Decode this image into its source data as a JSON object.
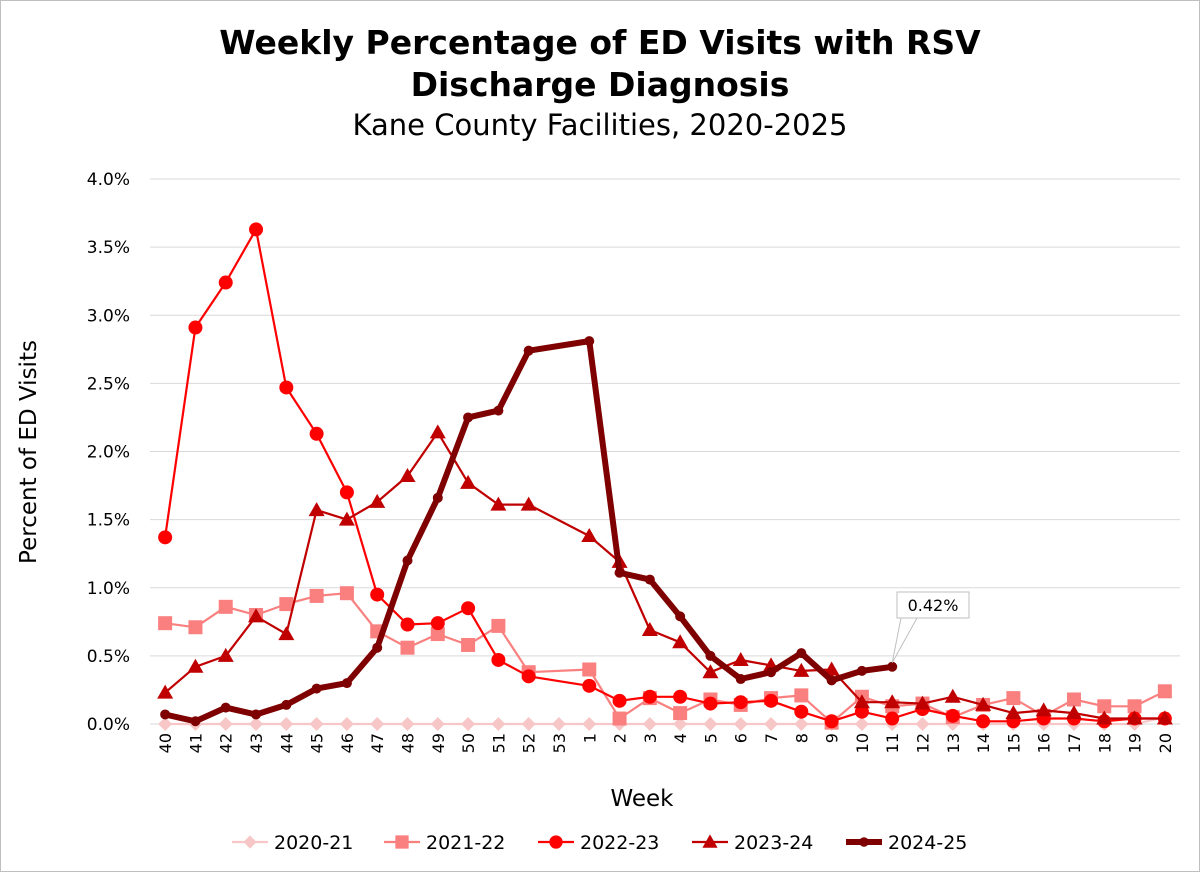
{
  "chart_data": {
    "type": "line",
    "title_line1": "Weekly Percentage of ED Visits with RSV",
    "title_line2": "Discharge Diagnosis",
    "subtitle": "Kane County Facilities, 2020-2025",
    "xlabel": "Week",
    "ylabel": "Percent of ED Visits",
    "ylim": [
      0,
      4.0
    ],
    "yticks": [
      "0.0%",
      "0.5%",
      "1.0%",
      "1.5%",
      "2.0%",
      "2.5%",
      "3.0%",
      "3.5%",
      "4.0%"
    ],
    "grid": true,
    "legend_position": "bottom",
    "categories": [
      "40",
      "41",
      "42",
      "43",
      "44",
      "45",
      "46",
      "47",
      "48",
      "49",
      "50",
      "51",
      "52",
      "53",
      "1",
      "2",
      "3",
      "4",
      "5",
      "6",
      "7",
      "8",
      "9",
      "10",
      "11",
      "12",
      "13",
      "14",
      "15",
      "16",
      "17",
      "18",
      "19",
      "20"
    ],
    "series": [
      {
        "name": "2020-21",
        "color": "#f7c7c7",
        "marker": "diamond",
        "values": [
          0,
          0,
          0,
          0,
          0,
          0,
          0,
          0,
          0,
          0,
          0,
          0,
          0,
          0,
          0,
          0,
          0,
          0,
          0,
          0,
          0,
          0,
          0,
          0,
          0,
          0,
          0,
          0,
          0,
          0,
          0,
          0,
          0,
          0.05
        ]
      },
      {
        "name": "2021-22",
        "color": "#fa8080",
        "marker": "square",
        "values": [
          0.74,
          0.71,
          0.86,
          0.8,
          0.88,
          0.94,
          0.96,
          0.68,
          0.56,
          0.66,
          0.58,
          0.72,
          0.38,
          null,
          0.4,
          0.04,
          0.19,
          0.08,
          0.18,
          0.14,
          0.19,
          0.21,
          0.01,
          0.2,
          0.13,
          0.15,
          0.05,
          0.14,
          0.19,
          0.06,
          0.18,
          0.13,
          0.13,
          0.24
        ]
      },
      {
        "name": "2022-23",
        "color": "#ff0000",
        "marker": "circle",
        "values": [
          1.37,
          2.91,
          3.24,
          3.63,
          2.47,
          2.13,
          1.7,
          0.95,
          0.73,
          0.74,
          0.85,
          0.47,
          0.35,
          null,
          0.28,
          0.17,
          0.2,
          0.2,
          0.15,
          0.16,
          0.17,
          0.09,
          0.02,
          0.09,
          0.04,
          0.11,
          0.06,
          0.02,
          0.02,
          0.04,
          0.04,
          0.02,
          0.04,
          0.04
        ]
      },
      {
        "name": "2023-24",
        "color": "#c00000",
        "marker": "triangle",
        "values": [
          0.23,
          0.42,
          0.5,
          0.79,
          0.66,
          1.57,
          1.5,
          1.63,
          1.82,
          2.14,
          1.77,
          1.61,
          1.61,
          null,
          1.38,
          1.19,
          0.69,
          0.6,
          0.38,
          0.47,
          0.43,
          0.39,
          0.4,
          0.16,
          0.16,
          0.15,
          0.2,
          0.14,
          0.08,
          0.1,
          0.08,
          0.04,
          0.04,
          0.04
        ]
      },
      {
        "name": "2024-25",
        "color": "#7f0000",
        "marker": "circle-small",
        "values": [
          0.07,
          0.02,
          0.12,
          0.07,
          0.14,
          0.26,
          0.3,
          0.56,
          1.2,
          1.66,
          2.25,
          2.3,
          2.74,
          null,
          2.81,
          1.11,
          1.06,
          0.79,
          0.5,
          0.33,
          0.38,
          0.52,
          0.32,
          0.39,
          0.42,
          null,
          null,
          null,
          null,
          null,
          null,
          null,
          null,
          null
        ]
      }
    ],
    "annotation": {
      "text": "0.42%",
      "series": "2024-25",
      "category": "11"
    }
  }
}
